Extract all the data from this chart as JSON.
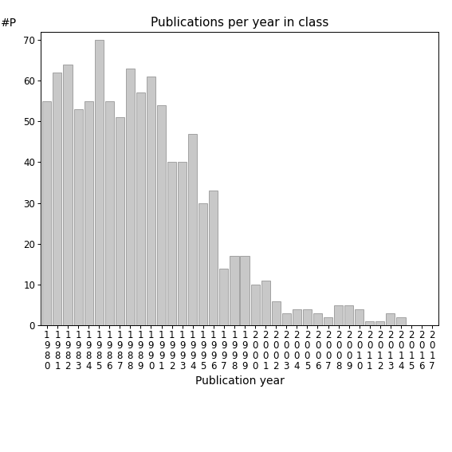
{
  "title": "Publications per year in class",
  "xlabel": "Publication year",
  "ylabel": "#P",
  "years": [
    "1980",
    "1981",
    "1982",
    "1983",
    "1984",
    "1985",
    "1986",
    "1987",
    "1988",
    "1989",
    "1990",
    "1991",
    "1992",
    "1993",
    "1994",
    "1995",
    "1996",
    "1997",
    "1998",
    "1999",
    "2000",
    "2001",
    "2002",
    "2003",
    "2004",
    "2005",
    "2006",
    "2007",
    "2008",
    "2009",
    "2010",
    "2011",
    "2012",
    "2013",
    "2014",
    "2015",
    "2016",
    "2017"
  ],
  "values": [
    55,
    62,
    64,
    53,
    55,
    70,
    55,
    51,
    63,
    57,
    61,
    54,
    40,
    40,
    47,
    30,
    33,
    14,
    17,
    17,
    10,
    11,
    6,
    3,
    4,
    4,
    3,
    2,
    5,
    5,
    4,
    1,
    1,
    3,
    2,
    0,
    0,
    0
  ],
  "bar_color": "#c8c8c8",
  "bar_edge_color": "#888888",
  "background_color": "#ffffff",
  "ylim": [
    0,
    72
  ],
  "yticks": [
    0,
    10,
    20,
    30,
    40,
    50,
    60,
    70
  ],
  "title_fontsize": 11,
  "axis_label_fontsize": 10,
  "tick_fontsize": 8.5
}
